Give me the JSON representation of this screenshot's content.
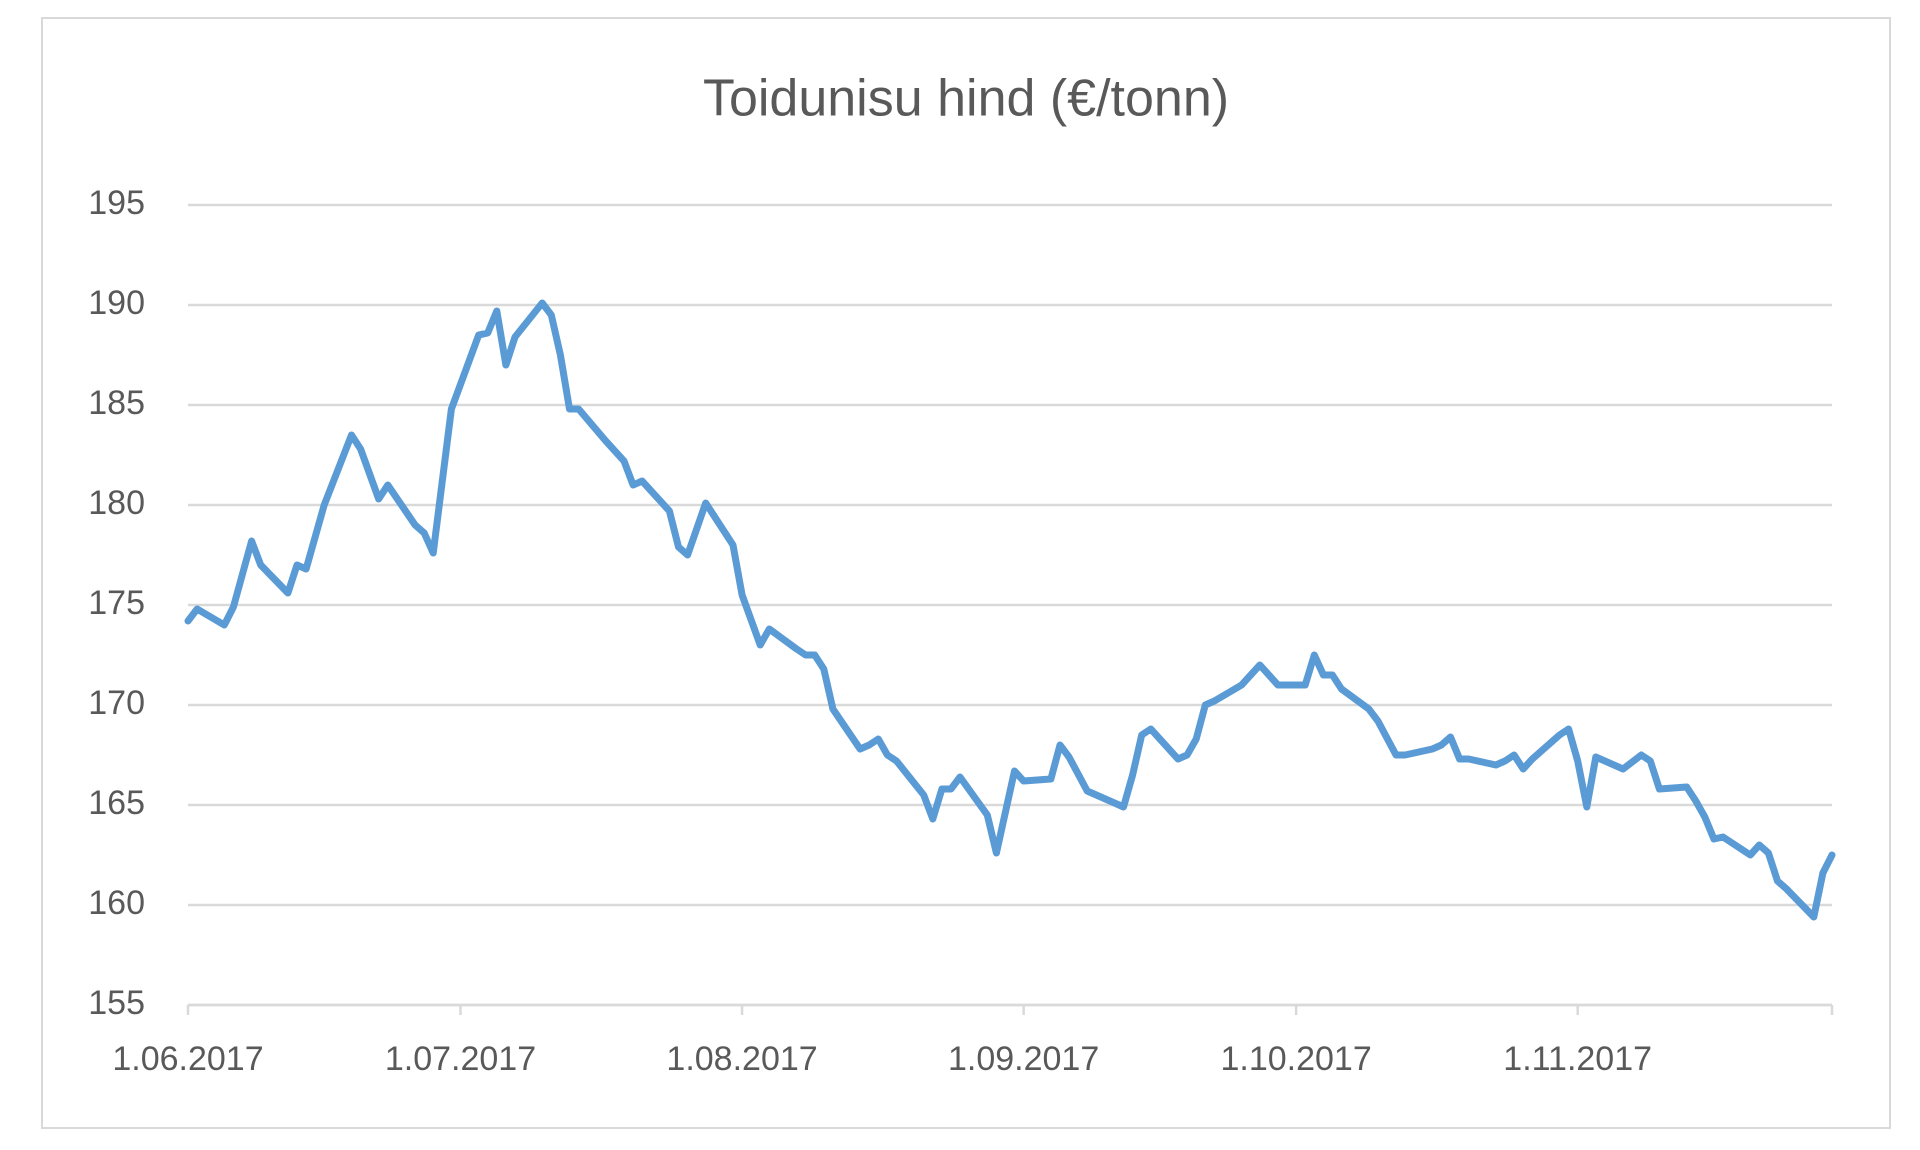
{
  "chart_data": {
    "type": "line",
    "title": "Toidunisu hind (€/tonn)",
    "color": "#5b9bd5",
    "grid": true,
    "x": [
      "2017-06-01",
      "2017-06-02",
      "2017-06-05",
      "2017-06-06",
      "2017-06-08",
      "2017-06-09",
      "2017-06-12",
      "2017-06-13",
      "2017-06-14",
      "2017-06-16",
      "2017-06-19",
      "2017-06-20",
      "2017-06-22",
      "2017-06-23",
      "2017-06-26",
      "2017-06-27",
      "2017-06-28",
      "2017-06-30",
      "2017-07-03",
      "2017-07-04",
      "2017-07-05",
      "2017-07-06",
      "2017-07-07",
      "2017-07-10",
      "2017-07-11",
      "2017-07-12",
      "2017-07-13",
      "2017-07-14",
      "2017-07-17",
      "2017-07-19",
      "2017-07-20",
      "2017-07-21",
      "2017-07-24",
      "2017-07-25",
      "2017-07-26",
      "2017-07-28",
      "2017-07-31",
      "2017-08-01",
      "2017-08-03",
      "2017-08-04",
      "2017-08-07",
      "2017-08-08",
      "2017-08-09",
      "2017-08-10",
      "2017-08-11",
      "2017-08-14",
      "2017-08-15",
      "2017-08-16",
      "2017-08-17",
      "2017-08-18",
      "2017-08-21",
      "2017-08-22",
      "2017-08-23",
      "2017-08-24",
      "2017-08-25",
      "2017-08-28",
      "2017-08-29",
      "2017-08-31",
      "2017-09-01",
      "2017-09-04",
      "2017-09-05",
      "2017-09-06",
      "2017-09-08",
      "2017-09-11",
      "2017-09-12",
      "2017-09-13",
      "2017-09-14",
      "2017-09-15",
      "2017-09-18",
      "2017-09-19",
      "2017-09-20",
      "2017-09-21",
      "2017-09-22",
      "2017-09-25",
      "2017-09-27",
      "2017-09-28",
      "2017-09-29",
      "2017-10-02",
      "2017-10-03",
      "2017-10-04",
      "2017-10-05",
      "2017-10-06",
      "2017-10-09",
      "2017-10-10",
      "2017-10-12",
      "2017-10-13",
      "2017-10-16",
      "2017-10-17",
      "2017-10-18",
      "2017-10-19",
      "2017-10-20",
      "2017-10-23",
      "2017-10-24",
      "2017-10-25",
      "2017-10-26",
      "2017-10-27",
      "2017-10-30",
      "2017-10-31",
      "2017-11-01",
      "2017-11-02",
      "2017-11-03",
      "2017-11-06",
      "2017-11-08",
      "2017-11-09",
      "2017-11-10",
      "2017-11-13",
      "2017-11-14",
      "2017-11-15",
      "2017-11-16",
      "2017-11-17",
      "2017-11-20",
      "2017-11-21",
      "2017-11-22",
      "2017-11-23",
      "2017-11-24",
      "2017-11-27",
      "2017-11-28",
      "2017-11-29"
    ],
    "values": [
      174.2,
      174.8,
      174.0,
      174.9,
      178.2,
      177.0,
      175.6,
      177.0,
      176.8,
      180.0,
      183.5,
      182.8,
      180.3,
      181.0,
      179.0,
      178.6,
      177.6,
      184.8,
      188.5,
      188.6,
      189.7,
      187.0,
      188.4,
      190.1,
      189.5,
      187.5,
      184.8,
      184.8,
      183.2,
      182.2,
      181.0,
      181.2,
      179.7,
      177.9,
      177.5,
      180.1,
      178.0,
      175.5,
      173.0,
      173.8,
      172.8,
      172.5,
      172.5,
      171.8,
      169.8,
      167.8,
      168.0,
      168.3,
      167.5,
      167.2,
      165.5,
      164.3,
      165.8,
      165.8,
      166.4,
      164.5,
      162.6,
      166.7,
      166.2,
      166.3,
      168.0,
      167.4,
      165.7,
      165.1,
      164.9,
      166.5,
      168.5,
      168.8,
      167.3,
      167.5,
      168.3,
      170.0,
      170.2,
      171.0,
      172.0,
      171.5,
      171.0,
      171.0,
      172.5,
      171.5,
      171.5,
      170.8,
      169.8,
      169.2,
      167.5,
      167.5,
      167.8,
      168.0,
      168.4,
      167.3,
      167.3,
      167.0,
      167.2,
      167.5,
      166.8,
      167.3,
      168.5,
      168.8,
      167.2,
      164.9,
      167.4,
      166.8,
      167.5,
      167.2,
      165.8,
      165.9,
      165.2,
      164.4,
      163.3,
      163.4,
      162.5,
      163.0,
      162.6,
      161.2,
      160.8,
      159.4,
      161.6,
      162.5
    ],
    "xlim": [
      "2017-06-01",
      "2017-11-29"
    ],
    "xticks": [
      {
        "value": "2017-06-01",
        "label": "1.06.2017"
      },
      {
        "value": "2017-07-01",
        "label": "1.07.2017"
      },
      {
        "value": "2017-08-01",
        "label": "1.08.2017"
      },
      {
        "value": "2017-09-01",
        "label": "1.09.2017"
      },
      {
        "value": "2017-10-01",
        "label": "1.10.2017"
      },
      {
        "value": "2017-11-01",
        "label": "1.11.2017"
      }
    ],
    "ylim": [
      155,
      195
    ],
    "yticks": [
      155,
      160,
      165,
      170,
      175,
      180,
      185,
      190,
      195
    ]
  }
}
